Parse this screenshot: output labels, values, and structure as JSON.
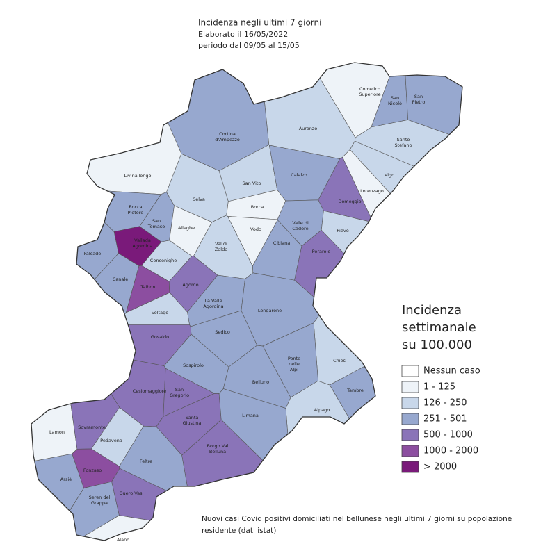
{
  "header": {
    "title": "Incidenza negli ultimi 7 giorni",
    "lines": [
      "Elaborato il  16/05/2022",
      "periodo dal 09/05 al 15/05"
    ]
  },
  "legend": {
    "title": [
      "Incidenza",
      "settimanale",
      "su 100.000"
    ],
    "items": [
      {
        "label": "Nessun caso",
        "color": "#ffffff"
      },
      {
        "label": "1 - 125",
        "color": "#eef3f8"
      },
      {
        "label": "126 - 250",
        "color": "#c8d7ea"
      },
      {
        "label": "251 - 501",
        "color": "#97a8cf"
      },
      {
        "label": "500 - 1000",
        "color": "#8a74b8"
      },
      {
        "label": "1000 - 2000",
        "color": "#8c4ea0"
      },
      {
        "label": "> 2000",
        "color": "#7a1a7a"
      }
    ]
  },
  "municipalities": [
    {
      "label": [
        "Comelico",
        "Superiore"
      ],
      "color": "#eef3f8"
    },
    {
      "label": [
        "San",
        "Nicolò"
      ],
      "color": "#97a8cf"
    },
    {
      "label": [
        "San",
        "Pietro"
      ],
      "color": "#97a8cf"
    },
    {
      "label": [
        "Auronzo"
      ],
      "color": "#c8d7ea"
    },
    {
      "label": [
        "Santo",
        "Stefano"
      ],
      "color": "#c8d7ea"
    },
    {
      "label": [
        "Cortina",
        "d'Ampezzo"
      ],
      "color": "#97a8cf"
    },
    {
      "label": [
        "Livinallongo"
      ],
      "color": "#eef3f8"
    },
    {
      "label": [
        "San Vito"
      ],
      "color": "#c8d7ea"
    },
    {
      "label": [
        "Calalzo"
      ],
      "color": "#97a8cf"
    },
    {
      "label": [
        "Vigo"
      ],
      "color": "#c8d7ea"
    },
    {
      "label": [
        "Lorenzago"
      ],
      "color": "#eef3f8"
    },
    {
      "label": [
        "Domeggio"
      ],
      "color": "#8a74b8"
    },
    {
      "label": [
        "Selva"
      ],
      "color": "#c8d7ea"
    },
    {
      "label": [
        "Borca"
      ],
      "color": "#eef3f8"
    },
    {
      "label": [
        "Rocca",
        "Pietore"
      ],
      "color": "#97a8cf"
    },
    {
      "label": [
        "San",
        "Tomaso"
      ],
      "color": "#97a8cf"
    },
    {
      "label": [
        "Alleghe"
      ],
      "color": "#eef3f8"
    },
    {
      "label": [
        "Vodo"
      ],
      "color": "#eef3f8"
    },
    {
      "label": [
        "Valle di",
        "Cadore"
      ],
      "color": "#97a8cf"
    },
    {
      "label": [
        "Pieve"
      ],
      "color": "#c8d7ea"
    },
    {
      "label": [
        "Vallada",
        "Agordina"
      ],
      "color": "#7a1a7a"
    },
    {
      "label": [
        "Falcade"
      ],
      "color": "#97a8cf"
    },
    {
      "label": [
        "Cencenighe"
      ],
      "color": "#c8d7ea"
    },
    {
      "label": [
        "Cibiana"
      ],
      "color": "#97a8cf"
    },
    {
      "label": [
        "Val di",
        "Zoldo"
      ],
      "color": "#c8d7ea"
    },
    {
      "label": [
        "Perarolo"
      ],
      "color": "#8a74b8"
    },
    {
      "label": [
        "Canale"
      ],
      "color": "#97a8cf"
    },
    {
      "label": [
        "Taibon"
      ],
      "color": "#8c4ea0"
    },
    {
      "label": [
        "Agordo"
      ],
      "color": "#8a74b8"
    },
    {
      "label": [
        "La Valle",
        "Agordina"
      ],
      "color": "#97a8cf"
    },
    {
      "label": [
        "Voltago"
      ],
      "color": "#c8d7ea"
    },
    {
      "label": [
        "Longarone"
      ],
      "color": "#97a8cf"
    },
    {
      "label": [
        "Sedico"
      ],
      "color": "#97a8cf"
    },
    {
      "label": [
        "Gosaldo"
      ],
      "color": "#8a74b8"
    },
    {
      "label": [
        "Chies"
      ],
      "color": "#c8d7ea"
    },
    {
      "label": [
        "Ponte",
        "nelle",
        "Alpi"
      ],
      "color": "#97a8cf"
    },
    {
      "label": [
        "Sospirolo"
      ],
      "color": "#97a8cf"
    },
    {
      "label": [
        "Belluno"
      ],
      "color": "#97a8cf"
    },
    {
      "label": [
        "Cesiomaggiore"
      ],
      "color": "#8a74b8"
    },
    {
      "label": [
        "San",
        "Gregorio"
      ],
      "color": "#8a74b8"
    },
    {
      "label": [
        "Tambre"
      ],
      "color": "#97a8cf"
    },
    {
      "label": [
        "Santa",
        "Giustina"
      ],
      "color": "#8a74b8"
    },
    {
      "label": [
        "Alpago"
      ],
      "color": "#c8d7ea"
    },
    {
      "label": [
        "Limana"
      ],
      "color": "#97a8cf"
    },
    {
      "label": [
        "Lamon"
      ],
      "color": "#eef3f8"
    },
    {
      "label": [
        "Sovramonte"
      ],
      "color": "#8a74b8"
    },
    {
      "label": [
        "Pedavena"
      ],
      "color": "#c8d7ea"
    },
    {
      "label": [
        "Borgo Val",
        "Belluna"
      ],
      "color": "#8a74b8"
    },
    {
      "label": [
        "Feltre"
      ],
      "color": "#97a8cf"
    },
    {
      "label": [
        "Fonzaso"
      ],
      "color": "#8c4ea0"
    },
    {
      "label": [
        "Arsiè"
      ],
      "color": "#97a8cf"
    },
    {
      "label": [
        "Seren del",
        "Grappa"
      ],
      "color": "#97a8cf"
    },
    {
      "label": [
        "Quero Vas"
      ],
      "color": "#8a74b8"
    },
    {
      "label": [
        "Alano"
      ],
      "color": "#eef3f8"
    }
  ],
  "footnote": [
    "Nuovi casi Covid positivi domiciliati nel bellunese negli ultimi 7 giorni su popolazione",
    "residente (dati istat)"
  ]
}
